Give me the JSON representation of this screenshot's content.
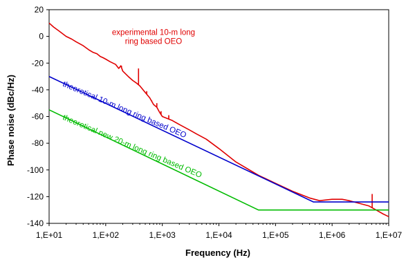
{
  "chart_data": {
    "type": "line",
    "xlabel": "Frequency (Hz)",
    "ylabel": "Phase noise (dBc/Hz)",
    "xscale": "log",
    "xlim": [
      10,
      10000000
    ],
    "ylim": [
      -140,
      20
    ],
    "grid": false,
    "legend": "none",
    "x_tick_labels": [
      "1,E+01",
      "1,E+02",
      "1,E+03",
      "1,E+04",
      "1,E+05",
      "1,E+06",
      "1,E+07"
    ],
    "y_tick_labels": [
      "20",
      "0",
      "-20",
      "-40",
      "-60",
      "-80",
      "-100",
      "-120",
      "-140"
    ],
    "series": [
      {
        "color": "#e00000",
        "points": [
          [
            10,
            10
          ],
          [
            12,
            7
          ],
          [
            15,
            4
          ],
          [
            20,
            0
          ],
          [
            25,
            -2
          ],
          [
            30,
            -4
          ],
          [
            40,
            -7
          ],
          [
            50,
            -10
          ],
          [
            60,
            -12
          ],
          [
            70,
            -13
          ],
          [
            80,
            -15
          ],
          [
            90,
            -16
          ],
          [
            100,
            -17
          ],
          [
            120,
            -19
          ],
          [
            150,
            -21
          ],
          [
            170,
            -24
          ],
          [
            185,
            -22
          ],
          [
            200,
            -26
          ],
          [
            250,
            -30
          ],
          [
            300,
            -33
          ],
          [
            350,
            -35
          ],
          [
            400,
            -37
          ],
          [
            500,
            -42
          ],
          [
            600,
            -46
          ],
          [
            700,
            -51
          ],
          [
            800,
            -53
          ],
          [
            900,
            -57
          ],
          [
            1000,
            -60
          ],
          [
            1500,
            -63
          ],
          [
            2000,
            -66
          ],
          [
            3000,
            -70
          ],
          [
            4000,
            -73
          ],
          [
            6000,
            -77
          ],
          [
            10000,
            -84
          ],
          [
            20000,
            -94
          ],
          [
            50000,
            -104
          ],
          [
            100000,
            -110
          ],
          [
            200000,
            -116
          ],
          [
            400000,
            -121
          ],
          [
            600000,
            -123
          ],
          [
            1000000,
            -122
          ],
          [
            1500000,
            -122
          ],
          [
            2000000,
            -123
          ],
          [
            3000000,
            -125
          ],
          [
            4500000,
            -127
          ],
          [
            6000000,
            -130
          ],
          [
            8000000,
            -133
          ],
          [
            10000000,
            -135
          ]
        ],
        "spikes": [
          [
            190,
            -22
          ],
          [
            380,
            -24
          ],
          [
            530,
            -41
          ],
          [
            650,
            -48
          ],
          [
            800,
            -50
          ],
          [
            950,
            -56
          ],
          [
            1300,
            -59
          ],
          [
            5100000,
            -118
          ]
        ]
      },
      {
        "color": "#0000cc",
        "points": [
          [
            10,
            -30
          ],
          [
            470000,
            -124
          ],
          [
            10000000,
            -124
          ]
        ]
      },
      {
        "color": "#00bb00",
        "points": [
          [
            10,
            -55
          ],
          [
            50000,
            -130
          ],
          [
            10000000,
            -130
          ]
        ]
      }
    ],
    "annotations": [
      {
        "lines": [
          "experimental 10-m long",
          "ring based OEO"
        ],
        "color": "#e00000",
        "x": 700,
        "y": 1,
        "rotate": 0
      },
      {
        "lines": [
          "theoretical 10-m long ring based OEO"
        ],
        "color": "#0000cc",
        "x": 17,
        "y": -37,
        "rotate": 23
      },
      {
        "lines": [
          "theoretical new 20-m long ring based OEO"
        ],
        "color": "#00bb00",
        "x": 17,
        "y": -62,
        "rotate": 23
      }
    ]
  }
}
